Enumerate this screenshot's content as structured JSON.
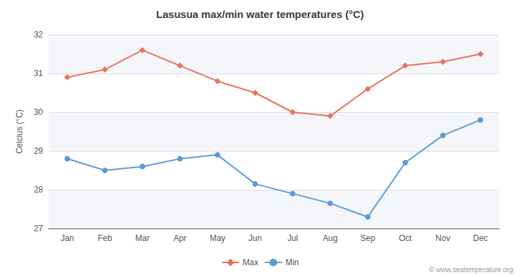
{
  "chart_data": {
    "type": "line",
    "title": "Lasusua max/min water temperatures (°C)",
    "ylabel": "Celcius (°C)",
    "categories": [
      "Jan",
      "Feb",
      "Mar",
      "Apr",
      "May",
      "Jun",
      "Jul",
      "Aug",
      "Sep",
      "Oct",
      "Nov",
      "Dec"
    ],
    "series": [
      {
        "name": "Max",
        "color": "#e8735a",
        "marker": "diamond",
        "values": [
          30.9,
          31.1,
          31.6,
          31.2,
          30.8,
          30.5,
          30.0,
          29.9,
          30.6,
          31.2,
          31.3,
          31.5
        ]
      },
      {
        "name": "Min",
        "color": "#5b9bd5",
        "marker": "circle",
        "values": [
          28.8,
          28.5,
          28.6,
          28.8,
          28.9,
          28.15,
          27.9,
          27.65,
          27.3,
          28.7,
          29.4,
          29.8
        ]
      }
    ],
    "ylim": [
      27,
      32
    ],
    "yticks": [
      27,
      28,
      29,
      30,
      31,
      32
    ],
    "grid": true,
    "legend": "bottom",
    "annotations": [
      "© www.seatemperature.org"
    ]
  }
}
